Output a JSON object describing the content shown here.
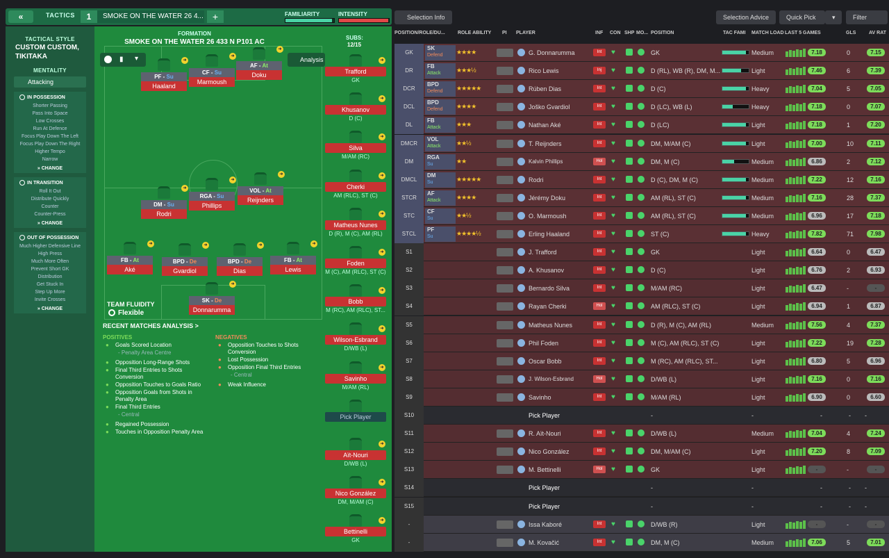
{
  "top": {
    "back_label": "«",
    "tactics_label": "TACTICS",
    "slot_num": "1",
    "tactic_name": "SMOKE ON THE WATER 26 4...",
    "add_label": "+",
    "familiarity_label": "FAMILIARITY",
    "intensity_label": "INTENSITY",
    "familiarity_pct": 0.95,
    "intensity_pct": 0.98
  },
  "left": {
    "style_heading": "TACTICAL STYLE",
    "style_title_1": "CUSTOM CUSTOM,",
    "style_title_2": "TIKITAKA",
    "mentality_heading": "MENTALITY",
    "mentality_value": "Attacking",
    "boxes": [
      {
        "title": "IN POSSESSION",
        "items": [
          "Shorter Passing",
          "Pass Into Space",
          "Low Crosses",
          "Run At Defence",
          "Focus Play Down The Left",
          "Focus Play Down The Right",
          "Higher Tempo",
          "Narrow"
        ],
        "change": "CHANGE"
      },
      {
        "title": "IN TRANSITION",
        "items": [
          "Roll It Out",
          "Distribute Quickly",
          "Counter",
          "Counter-Press"
        ],
        "change": "CHANGE"
      },
      {
        "title": "OUT OF POSSESSION",
        "items": [
          "Much Higher Defensive Line",
          "High Press",
          "Much More Often",
          "Prevent Short GK",
          "Distribution",
          "Get Stuck In",
          "Step Up More",
          "Invite Crosses"
        ],
        "change": "CHANGE"
      }
    ]
  },
  "pitch": {
    "formation_heading": "FORMATION",
    "formation_name": "SMOKE ON THE WATER 26 433 N P101 AC",
    "subs_heading": "SUBS:",
    "subs_count": "12/15",
    "analysis_label": "Analysis",
    "fluidity_heading": "TEAM FLUIDITY",
    "fluidity_value": "Flexible",
    "players": [
      {
        "pos": "PF",
        "duty": "Su",
        "name": "Haaland"
      },
      {
        "pos": "CF",
        "duty": "Su",
        "name": "Marmoush"
      },
      {
        "pos": "AF",
        "duty": "At",
        "name": "Doku"
      },
      {
        "pos": "RGA",
        "duty": "Su",
        "name": "Phillips"
      },
      {
        "pos": "VOL",
        "duty": "At",
        "name": "Reijnders"
      },
      {
        "pos": "DM",
        "duty": "Su",
        "name": "Rodri"
      },
      {
        "pos": "FB",
        "duty": "At",
        "name": "Aké"
      },
      {
        "pos": "BPD",
        "duty": "De",
        "name": "Gvardiol"
      },
      {
        "pos": "BPD",
        "duty": "De",
        "name": "Dias"
      },
      {
        "pos": "FB",
        "duty": "At",
        "name": "Lewis"
      },
      {
        "pos": "SK",
        "duty": "De",
        "name": "Donnarumma"
      }
    ],
    "subs": [
      {
        "name": "Trafford",
        "role": "GK"
      },
      {
        "name": "Khusanov",
        "role": "D (C)"
      },
      {
        "name": "Silva",
        "role": "M/AM (RC)"
      },
      {
        "name": "Cherki",
        "role": "AM (RLC), ST (C)"
      },
      {
        "name": "Matheus Nunes",
        "role": "D (R), M (C), AM (RL)"
      },
      {
        "name": "Foden",
        "role": "M (C), AM (RLC), ST (C)"
      },
      {
        "name": "Bobb",
        "role": "M (RC), AM (RLC), ST..."
      },
      {
        "name": "Wilson-Esbrand",
        "role": "D/WB (L)"
      },
      {
        "name": "Savinho",
        "role": "M/AM (RL)"
      },
      {
        "name": "Pick Player",
        "role": ""
      },
      {
        "name": "Aït-Nouri",
        "role": "D/WB (L)"
      },
      {
        "name": "Nico González",
        "role": "DM, M/AM (C)"
      },
      {
        "name": "Bettinelli",
        "role": "GK"
      }
    ]
  },
  "analysis": {
    "heading": "RECENT MATCHES ANALYSIS >",
    "positives_heading": "POSITIVES",
    "negatives_heading": "NEGATIVES",
    "positives": [
      "Goals Scored Location",
      "- Penalty Area Centre",
      "Opposition Long-Range Shots",
      "Final Third Entries to Shots Conversion",
      "Opposition Touches to Goals Ratio",
      "Opposition Goals from Shots in Penalty Area",
      "Final Third Entries",
      "- Central",
      "Regained Possession",
      "Touches in Opposition Penalty Area"
    ],
    "negatives": [
      "Opposition Touches to Shots Conversion",
      "Lost Possession",
      "Opposition Final Third Entries",
      "- Central",
      "Weak Influence"
    ]
  },
  "right": {
    "selection_info": "Selection Info",
    "selection_advice": "Selection Advice",
    "quick_pick": "Quick Pick",
    "filter": "Filter",
    "headers": {
      "pos": "POSITION/ROLE/DU...",
      "ability": "ROLE ABILITY",
      "pi": "PI",
      "player": "PLAYER",
      "inf": "INF",
      "con": "CON",
      "shp": "SHP",
      "mo": "MO...",
      "position": "POSITION",
      "tac": "TAC FAMI",
      "load": "MATCH LOAD",
      "last5": "LAST 5 GAMES",
      "gls": "GLS",
      "avrat": "AV RAT"
    },
    "rows": [
      {
        "slot": "GK",
        "role": "SK",
        "duty": "Defend",
        "stars": "★★★★",
        "player": "G. Donnarumma",
        "inf": "Int",
        "position": "GK",
        "load": "Medium",
        "last": "7.18",
        "gls": "0",
        "av": "7.15"
      },
      {
        "slot": "DR",
        "role": "FB",
        "duty": "Attack",
        "stars": "★★★½",
        "player": "Rico Lewis",
        "inf": "Inj",
        "position": "D (RL), WB (R), DM, M...",
        "load": "Light",
        "last": "7.46",
        "gls": "6",
        "av": "7.39"
      },
      {
        "slot": "DCR",
        "role": "BPD",
        "duty": "Defend",
        "stars": "★★★★★",
        "player": "Rúben Dias",
        "inf": "Int",
        "position": "D (C)",
        "load": "Heavy",
        "last": "7.04",
        "gls": "5",
        "av": "7.05"
      },
      {
        "slot": "DCL",
        "role": "BPD",
        "duty": "Defend",
        "stars": "★★★★",
        "player": "Joško Gvardiol",
        "inf": "Int",
        "position": "D (LC), WB (L)",
        "load": "Heavy",
        "last": "7.18",
        "gls": "0",
        "av": "7.07"
      },
      {
        "slot": "DL",
        "role": "FB",
        "duty": "Attack",
        "stars": "★★★",
        "player": "Nathan Aké",
        "inf": "Int",
        "position": "D (LC)",
        "load": "Light",
        "last": "7.18",
        "gls": "1",
        "av": "7.20"
      },
      {
        "slot": "DMCR",
        "role": "VOL",
        "duty": "Attack",
        "stars": "★★½",
        "player": "T. Reijnders",
        "inf": "Int",
        "position": "DM, M/AM (C)",
        "load": "Light",
        "last": "7.00",
        "gls": "10",
        "av": "7.11"
      },
      {
        "slot": "DM",
        "role": "RGA",
        "duty": "Su",
        "stars": "★★",
        "player": "Kalvin Phillips",
        "inf": "Hol",
        "position": "DM, M (C)",
        "load": "Medium",
        "last": "6.86",
        "gls": "2",
        "av": "7.12"
      },
      {
        "slot": "DMCL",
        "role": "DM",
        "duty": "Su",
        "stars": "★★★★★",
        "player": "Rodri",
        "inf": "Int",
        "position": "D (C), DM, M (C)",
        "load": "Medium",
        "last": "7.22",
        "gls": "12",
        "av": "7.16"
      },
      {
        "slot": "STCR",
        "role": "AF",
        "duty": "Attack",
        "stars": "★★★★",
        "player": "Jérémy Doku",
        "inf": "Int",
        "position": "AM (RL), ST (C)",
        "load": "Medium",
        "last": "7.16",
        "gls": "28",
        "av": "7.37"
      },
      {
        "slot": "STC",
        "role": "CF",
        "duty": "Su",
        "stars": "★★½",
        "player": "O. Marmoush",
        "inf": "Int",
        "position": "AM (RL), ST (C)",
        "load": "Medium",
        "last": "6.96",
        "gls": "17",
        "av": "7.18"
      },
      {
        "slot": "STCL",
        "role": "PF",
        "duty": "Su",
        "stars": "★★★★½",
        "player": "Erling Haaland",
        "inf": "Int",
        "position": "ST (C)",
        "load": "Heavy",
        "last": "7.82",
        "gls": "71",
        "av": "7.98"
      },
      {
        "slot": "S1",
        "role": "",
        "duty": "",
        "stars": "",
        "player": "J. Trafford",
        "inf": "Int",
        "position": "GK",
        "load": "Light",
        "last": "6.64",
        "gls": "0",
        "av": "6.47"
      },
      {
        "slot": "S2",
        "role": "",
        "duty": "",
        "stars": "",
        "player": "A. Khusanov",
        "inf": "Int",
        "position": "D (C)",
        "load": "Light",
        "last": "6.76",
        "gls": "2",
        "av": "6.93"
      },
      {
        "slot": "S3",
        "role": "",
        "duty": "",
        "stars": "",
        "player": "Bernardo Silva",
        "inf": "Int",
        "position": "M/AM (RC)",
        "load": "Light",
        "last": "6.47",
        "gls": "-",
        "av": "-"
      },
      {
        "slot": "S4",
        "role": "",
        "duty": "",
        "stars": "",
        "player": "Rayan Cherki",
        "inf": "Hol",
        "position": "AM (RLC), ST (C)",
        "load": "Light",
        "last": "6.94",
        "gls": "1",
        "av": "6.87"
      },
      {
        "slot": "S5",
        "role": "",
        "duty": "",
        "stars": "",
        "player": "Matheus Nunes",
        "inf": "Int",
        "position": "D (R), M (C), AM (RL)",
        "load": "Medium",
        "last": "7.56",
        "gls": "4",
        "av": "7.37"
      },
      {
        "slot": "S6",
        "role": "",
        "duty": "",
        "stars": "",
        "player": "Phil Foden",
        "inf": "Int",
        "position": "M (C), AM (RLC), ST (C)",
        "load": "Light",
        "last": "7.22",
        "gls": "19",
        "av": "7.28"
      },
      {
        "slot": "S7",
        "role": "",
        "duty": "",
        "stars": "",
        "player": "Oscar Bobb",
        "inf": "Int",
        "position": "M (RC), AM (RLC), ST...",
        "load": "Light",
        "last": "6.80",
        "gls": "5",
        "av": "6.96"
      },
      {
        "slot": "S8",
        "role": "",
        "duty": "",
        "stars": "",
        "player": "J. Wilson-Esbrand",
        "inf": "Hol",
        "position": "D/WB (L)",
        "load": "Light",
        "last": "7.16",
        "gls": "0",
        "av": "7.16"
      },
      {
        "slot": "S9",
        "role": "",
        "duty": "",
        "stars": "",
        "player": "Savinho",
        "inf": "Int",
        "position": "M/AM (RL)",
        "load": "Light",
        "last": "6.90",
        "gls": "0",
        "av": "6.60"
      },
      {
        "slot": "S10",
        "role": "",
        "duty": "",
        "stars": "",
        "player": "Pick Player",
        "inf": "",
        "position": "-",
        "load": "-",
        "last": "-",
        "gls": "-",
        "av": "-"
      },
      {
        "slot": "S11",
        "role": "",
        "duty": "",
        "stars": "",
        "player": "R. Aït-Nouri",
        "inf": "Int",
        "position": "D/WB (L)",
        "load": "Medium",
        "last": "7.04",
        "gls": "4",
        "av": "7.24"
      },
      {
        "slot": "S12",
        "role": "",
        "duty": "",
        "stars": "",
        "player": "Nico González",
        "inf": "Int",
        "position": "DM, M/AM (C)",
        "load": "Light",
        "last": "7.20",
        "gls": "8",
        "av": "7.09"
      },
      {
        "slot": "S13",
        "role": "",
        "duty": "",
        "stars": "",
        "player": "M. Bettinelli",
        "inf": "Hol",
        "position": "GK",
        "load": "Light",
        "last": "-",
        "gls": "-",
        "av": "-"
      },
      {
        "slot": "S14",
        "role": "",
        "duty": "",
        "stars": "",
        "player": "Pick Player",
        "inf": "",
        "position": "-",
        "load": "-",
        "last": "-",
        "gls": "-",
        "av": "-"
      },
      {
        "slot": "S15",
        "role": "",
        "duty": "",
        "stars": "",
        "player": "Pick Player",
        "inf": "",
        "position": "-",
        "load": "-",
        "last": "-",
        "gls": "-",
        "av": "-"
      },
      {
        "slot": "-",
        "role": "",
        "duty": "",
        "stars": "",
        "player": "Issa Kaboré",
        "inf": "Int",
        "position": "D/WB (R)",
        "load": "Light",
        "last": "-",
        "gls": "-",
        "av": "-"
      },
      {
        "slot": "-",
        "role": "",
        "duty": "",
        "stars": "",
        "player": "M. Kovačić",
        "inf": "Int",
        "position": "DM, M (C)",
        "load": "Medium",
        "last": "7.06",
        "gls": "5",
        "av": "7.01"
      }
    ]
  }
}
